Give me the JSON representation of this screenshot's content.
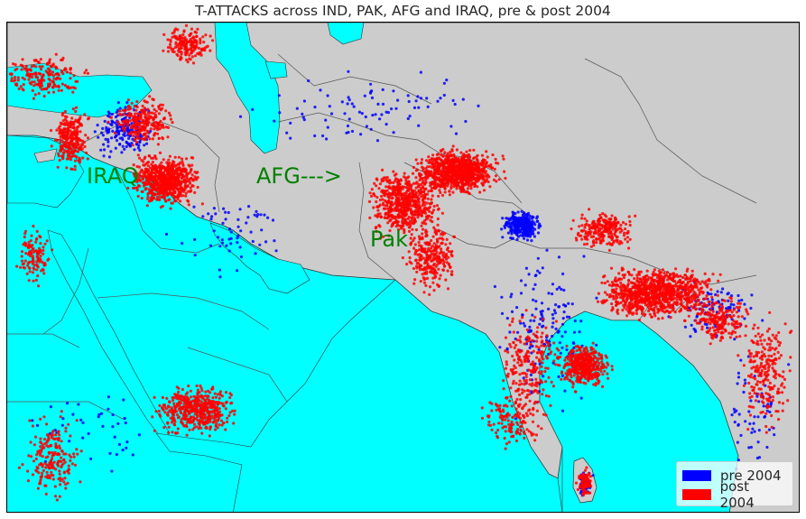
{
  "title": "T-ATTACKS across IND, PAK, AFG and IRAQ, pre & post 2004",
  "annotations": [
    {
      "id": "iraq",
      "text": "IRAQ"
    },
    {
      "id": "afg",
      "text": "AFG--->"
    },
    {
      "id": "pak",
      "text": "Pak"
    }
  ],
  "legend": {
    "placement": "bottom-right",
    "items": [
      {
        "label": "pre 2004",
        "color": "#0000ff"
      },
      {
        "label": "post 2004",
        "color": "#ff0000"
      }
    ]
  },
  "colors": {
    "land": "#cccccc",
    "water": "#00ffff",
    "borders": "#555555",
    "pre_2004": "#0000ff",
    "post_2004": "#ff0000",
    "annotation_text": "#008000"
  },
  "map": {
    "type": "scatter-map",
    "extent": {
      "lon": [
        25,
        98
      ],
      "lat": [
        2,
        40
      ]
    },
    "series": [
      {
        "key": "pre_2004",
        "color": "#0000ff"
      },
      {
        "key": "post_2004",
        "color": "#ff0000"
      }
    ]
  }
}
